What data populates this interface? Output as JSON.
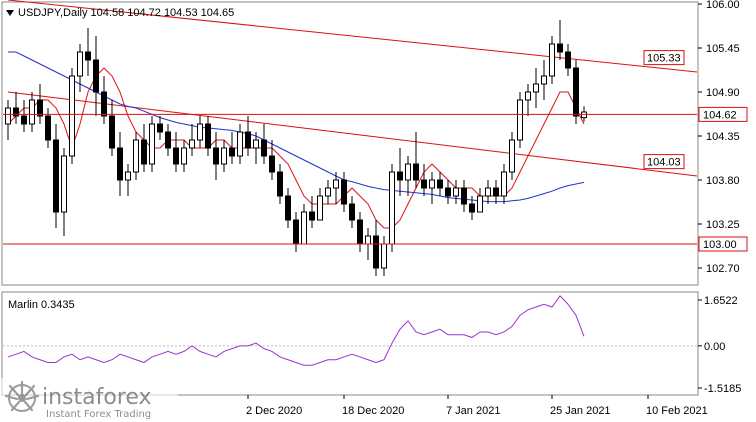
{
  "header": {
    "symbol_line": "USDJPY,Daily  104.58 104.72 104.53 104.65"
  },
  "indicator": {
    "label": "Marlin 0.3435",
    "ticks": [
      "1.6522",
      "0.00",
      "-1.5185"
    ]
  },
  "watermark": {
    "brand": "instaforex",
    "tagline": "Instant Forex Trading"
  },
  "chart_data": {
    "type": "candlestick",
    "symbol": "USDJPY",
    "timeframe": "Daily",
    "ylim": [
      102.5,
      106.0
    ],
    "y_ticks": [
      106.0,
      105.45,
      104.9,
      104.35,
      103.8,
      103.25,
      102.7
    ],
    "y_tick_labels": [
      "106.00",
      "105.45",
      "104.90",
      "104.35",
      "103.80",
      "103.25",
      "102.70"
    ],
    "x_labels": [
      "2 Dec 2020",
      "18 Dec 2020",
      "7 Jan 2021",
      "25 Jan 2021",
      "10 Feb 2021"
    ],
    "x_label_index": [
      30,
      42,
      55,
      68,
      80
    ],
    "candles": [
      [
        104.5,
        104.8,
        104.3,
        104.7
      ],
      [
        104.7,
        104.9,
        104.5,
        104.6
      ],
      [
        104.6,
        104.8,
        104.4,
        104.5
      ],
      [
        104.5,
        104.9,
        104.4,
        104.8
      ],
      [
        104.8,
        105.0,
        104.5,
        104.6
      ],
      [
        104.6,
        104.7,
        104.2,
        104.3
      ],
      [
        104.3,
        104.5,
        103.2,
        103.4
      ],
      [
        103.4,
        104.2,
        103.1,
        104.1
      ],
      [
        104.1,
        105.2,
        104.0,
        105.1
      ],
      [
        105.1,
        105.5,
        104.9,
        105.4
      ],
      [
        105.4,
        105.7,
        105.1,
        105.3
      ],
      [
        105.3,
        105.6,
        104.6,
        104.9
      ],
      [
        104.9,
        105.1,
        104.5,
        104.6
      ],
      [
        104.6,
        104.8,
        104.1,
        104.2
      ],
      [
        104.2,
        104.4,
        103.6,
        103.8
      ],
      [
        103.8,
        104.0,
        103.6,
        103.9
      ],
      [
        103.9,
        104.4,
        103.8,
        104.3
      ],
      [
        104.3,
        104.5,
        103.9,
        104.0
      ],
      [
        104.0,
        104.6,
        103.9,
        104.5
      ],
      [
        104.5,
        104.6,
        104.3,
        104.4
      ],
      [
        104.4,
        104.5,
        104.1,
        104.2
      ],
      [
        104.2,
        104.4,
        103.9,
        104.0
      ],
      [
        104.0,
        104.3,
        103.9,
        104.2
      ],
      [
        104.2,
        104.5,
        104.1,
        104.3
      ],
      [
        104.3,
        104.6,
        104.2,
        104.5
      ],
      [
        104.5,
        104.6,
        104.1,
        104.2
      ],
      [
        104.2,
        104.4,
        103.8,
        104.0
      ],
      [
        104.0,
        104.3,
        103.9,
        104.2
      ],
      [
        104.2,
        104.4,
        104.0,
        104.1
      ],
      [
        104.1,
        104.5,
        104.0,
        104.4
      ],
      [
        104.4,
        104.6,
        104.1,
        104.2
      ],
      [
        104.2,
        104.4,
        104.0,
        104.3
      ],
      [
        104.3,
        104.5,
        104.0,
        104.1
      ],
      [
        104.1,
        104.3,
        103.8,
        103.9
      ],
      [
        103.9,
        104.0,
        103.5,
        103.6
      ],
      [
        103.6,
        103.7,
        103.2,
        103.3
      ],
      [
        103.3,
        103.4,
        102.9,
        103.0
      ],
      [
        103.0,
        103.5,
        103.0,
        103.4
      ],
      [
        103.4,
        103.6,
        103.2,
        103.3
      ],
      [
        103.3,
        103.7,
        103.3,
        103.6
      ],
      [
        103.6,
        103.8,
        103.5,
        103.7
      ],
      [
        103.7,
        103.9,
        103.5,
        103.8
      ],
      [
        103.8,
        103.9,
        103.4,
        103.5
      ],
      [
        103.5,
        103.6,
        103.2,
        103.3
      ],
      [
        103.3,
        103.4,
        102.9,
        103.0
      ],
      [
        103.0,
        103.2,
        102.8,
        103.1
      ],
      [
        103.1,
        103.3,
        102.6,
        102.7
      ],
      [
        102.7,
        103.1,
        102.6,
        103.0
      ],
      [
        103.0,
        104.0,
        102.9,
        103.9
      ],
      [
        103.9,
        104.2,
        103.6,
        103.8
      ],
      [
        103.8,
        104.1,
        103.6,
        104.0
      ],
      [
        104.0,
        104.4,
        103.7,
        103.8
      ],
      [
        103.8,
        104.0,
        103.6,
        103.7
      ],
      [
        103.7,
        103.9,
        103.5,
        103.8
      ],
      [
        103.8,
        103.9,
        103.6,
        103.7
      ],
      [
        103.7,
        103.8,
        103.5,
        103.6
      ],
      [
        103.6,
        103.8,
        103.5,
        103.7
      ],
      [
        103.7,
        103.8,
        103.4,
        103.5
      ],
      [
        103.5,
        103.6,
        103.3,
        103.4
      ],
      [
        103.4,
        103.7,
        103.4,
        103.6
      ],
      [
        103.6,
        103.8,
        103.5,
        103.7
      ],
      [
        103.7,
        103.8,
        103.5,
        103.6
      ],
      [
        103.6,
        104.0,
        103.5,
        103.9
      ],
      [
        103.9,
        104.4,
        103.8,
        104.3
      ],
      [
        104.3,
        104.9,
        104.2,
        104.8
      ],
      [
        104.8,
        105.0,
        104.6,
        104.9
      ],
      [
        104.9,
        105.2,
        104.7,
        105.0
      ],
      [
        105.0,
        105.3,
        104.8,
        105.1
      ],
      [
        105.1,
        105.6,
        105.0,
        105.5
      ],
      [
        105.5,
        105.8,
        105.3,
        105.4
      ],
      [
        105.4,
        105.5,
        105.1,
        105.2
      ],
      [
        105.2,
        105.3,
        104.5,
        104.6
      ],
      [
        104.58,
        104.72,
        104.53,
        104.65
      ]
    ],
    "lines": [
      {
        "kind": "ma-red",
        "color": "#dd1111",
        "values": [
          104.5,
          104.6,
          104.7,
          104.7,
          104.8,
          104.8,
          104.7,
          104.5,
          104.2,
          104.5,
          104.9,
          105.1,
          105.2,
          105.1,
          104.9,
          104.6,
          104.4,
          104.3,
          104.2,
          104.2,
          104.3,
          104.3,
          104.3,
          104.2,
          104.2,
          104.2,
          104.3,
          104.3,
          104.2,
          104.2,
          104.2,
          104.2,
          104.2,
          104.2,
          104.1,
          104.0,
          103.8,
          103.6,
          103.5,
          103.5,
          103.5,
          103.5,
          103.6,
          103.7,
          103.6,
          103.5,
          103.3,
          103.2,
          103.2,
          103.3,
          103.5,
          103.7,
          103.9,
          104.0,
          103.9,
          103.8,
          103.7,
          103.7,
          103.7,
          103.6,
          103.6,
          103.6,
          103.6,
          103.7,
          103.9,
          104.1,
          104.3,
          104.5,
          104.7,
          104.9,
          104.9,
          104.7,
          104.5
        ]
      },
      {
        "kind": "ma-blue",
        "color": "#2233cc",
        "values": [
          105.4,
          105.4,
          105.35,
          105.3,
          105.25,
          105.2,
          105.15,
          105.1,
          105.05,
          105.0,
          104.95,
          104.9,
          104.85,
          104.8,
          104.75,
          104.72,
          104.7,
          104.66,
          104.62,
          104.58,
          104.55,
          104.52,
          104.5,
          104.48,
          104.46,
          104.45,
          104.44,
          104.43,
          104.42,
          104.4,
          104.38,
          104.35,
          104.3,
          104.25,
          104.2,
          104.15,
          104.1,
          104.05,
          104.0,
          103.95,
          103.9,
          103.85,
          103.8,
          103.78,
          103.75,
          103.72,
          103.7,
          103.68,
          103.67,
          103.66,
          103.65,
          103.64,
          103.63,
          103.62,
          103.6,
          103.58,
          103.57,
          103.56,
          103.55,
          103.54,
          103.53,
          103.53,
          103.53,
          103.54,
          103.55,
          103.57,
          103.6,
          103.63,
          103.66,
          103.7,
          103.73,
          103.75,
          103.77
        ]
      }
    ],
    "horizontal_levels": [
      {
        "value": 104.62,
        "label": "104.62",
        "color": "#dd1111"
      },
      {
        "value": 103.0,
        "label": "103.00",
        "color": "#dd1111"
      }
    ],
    "trend_lines": [
      {
        "from": [
          0,
          106.05
        ],
        "to": [
          92,
          105.15
        ],
        "color": "#dd1111"
      },
      {
        "from": [
          0,
          104.9
        ],
        "to": [
          92,
          103.85
        ],
        "color": "#dd1111"
      }
    ],
    "price_tags": [
      {
        "value": 105.33,
        "label": "105.33",
        "at_index": 79.5
      },
      {
        "value": 104.03,
        "label": "104.03",
        "at_index": 79.5
      }
    ],
    "oscillator": {
      "name": "Marlin",
      "current": 0.3435,
      "ylim": [
        -1.5185,
        1.6522
      ],
      "color": "#9933cc",
      "values": [
        -0.4,
        -0.3,
        -0.2,
        -0.4,
        -0.5,
        -0.6,
        -0.6,
        -0.4,
        -0.3,
        -0.5,
        -0.4,
        -0.5,
        -0.6,
        -0.5,
        -0.3,
        -0.4,
        -0.5,
        -0.6,
        -0.4,
        -0.3,
        -0.2,
        -0.3,
        -0.2,
        0.0,
        -0.2,
        -0.3,
        -0.4,
        -0.2,
        -0.1,
        0.0,
        0.0,
        0.1,
        -0.1,
        -0.2,
        -0.4,
        -0.5,
        -0.6,
        -0.7,
        -0.7,
        -0.6,
        -0.5,
        -0.5,
        -0.4,
        -0.3,
        -0.4,
        -0.5,
        -0.6,
        -0.5,
        0.1,
        0.6,
        0.9,
        0.5,
        0.4,
        0.5,
        0.6,
        0.4,
        0.4,
        0.4,
        0.3,
        0.5,
        0.5,
        0.4,
        0.5,
        0.7,
        1.1,
        1.3,
        1.4,
        1.5,
        1.4,
        1.8,
        1.5,
        1.1,
        0.3435
      ]
    }
  }
}
